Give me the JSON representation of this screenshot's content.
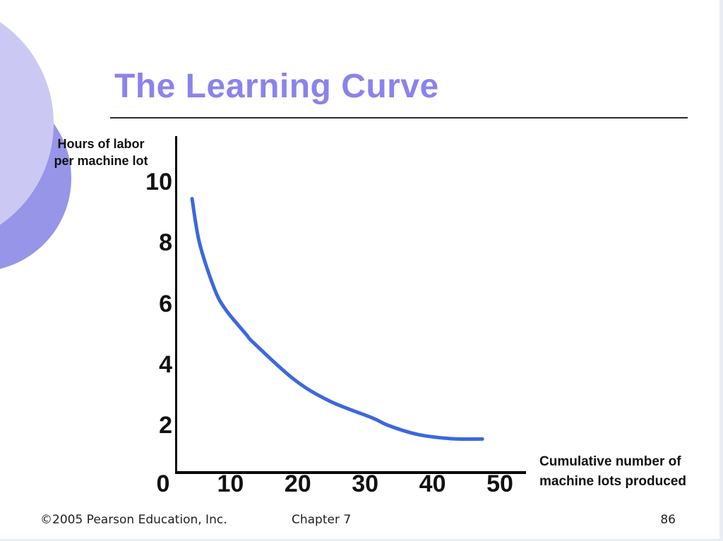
{
  "slide": {
    "title": "The Learning Curve",
    "footer": {
      "copyright": "©2005 Pearson Education, Inc.",
      "chapter": "Chapter 7",
      "page_number": "86"
    }
  },
  "chart_data": {
    "type": "line",
    "title": "The Learning Curve",
    "xlabel": "Cumulative number of machine lots produced",
    "xlabel_lines": [
      "Cumulative number of",
      "machine lots produced"
    ],
    "ylabel": "Hours of labor per machine lot",
    "ylabel_lines": [
      "Hours of labor",
      "per machine lot"
    ],
    "x_ticks": [
      0,
      10,
      20,
      30,
      40,
      50
    ],
    "y_ticks": [
      2,
      4,
      6,
      8,
      10
    ],
    "xlim": [
      0,
      52
    ],
    "ylim": [
      0,
      11.5
    ],
    "grid": false,
    "legend": false,
    "series": [
      {
        "name": "learning-curve",
        "color": "#3B68DC",
        "points": [
          [
            4.3,
            9.45
          ],
          [
            5.4,
            8.0
          ],
          [
            7.6,
            6.5
          ],
          [
            9.3,
            5.8
          ],
          [
            12.3,
            5.0
          ],
          [
            13.5,
            4.7
          ],
          [
            19.5,
            3.5
          ],
          [
            24.7,
            2.8
          ],
          [
            31.0,
            2.25
          ],
          [
            33.4,
            2.0
          ],
          [
            37.8,
            1.7
          ],
          [
            42.9,
            1.56
          ],
          [
            47.4,
            1.55
          ]
        ]
      }
    ]
  },
  "colors": {
    "title": "#8B83EC",
    "curve": "#3B68DC",
    "circle_light": "#CBC9F3",
    "circle_dark": "#9795E8",
    "axis": "#000000",
    "text": "#111111",
    "footer_text": "#222222"
  }
}
